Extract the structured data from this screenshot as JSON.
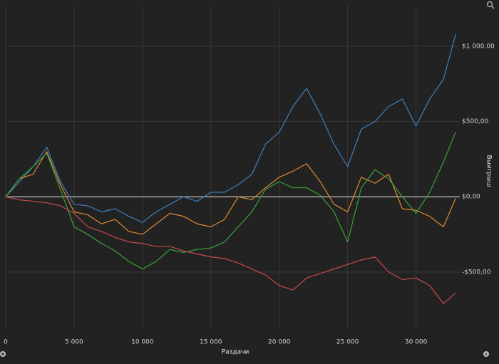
{
  "chart_data": {
    "type": "line",
    "x_label": "Раздачи",
    "y_label": "Выигрыш",
    "x": [
      0,
      1000,
      2000,
      3000,
      4000,
      5000,
      6000,
      7000,
      8000,
      9000,
      10000,
      11000,
      12000,
      13000,
      14000,
      15000,
      16000,
      17000,
      18000,
      19000,
      20000,
      21000,
      22000,
      23000,
      24000,
      25000,
      26000,
      27000,
      28000,
      29000,
      30000,
      31000,
      32000,
      32900
    ],
    "series": [
      {
        "color": "#3f7fc0",
        "values": [
          0,
          100,
          200,
          330,
          100,
          -50,
          -60,
          -100,
          -80,
          -130,
          -170,
          -100,
          -50,
          0,
          -30,
          30,
          30,
          80,
          150,
          350,
          430,
          600,
          720,
          550,
          350,
          200,
          450,
          500,
          600,
          650,
          470,
          650,
          780,
          1080
        ]
      },
      {
        "color": "#e08a2e",
        "values": [
          0,
          120,
          150,
          300,
          80,
          -100,
          -120,
          -180,
          -150,
          -230,
          -250,
          -180,
          -110,
          -130,
          -180,
          -200,
          -150,
          0,
          -20,
          60,
          130,
          170,
          220,
          100,
          -50,
          -100,
          130,
          90,
          150,
          -80,
          -90,
          -130,
          -200,
          -10
        ]
      },
      {
        "color": "#3aa33a",
        "values": [
          0,
          120,
          200,
          290,
          50,
          -200,
          -250,
          -310,
          -360,
          -430,
          -480,
          -430,
          -350,
          -370,
          -350,
          -340,
          -300,
          -200,
          -100,
          50,
          100,
          60,
          60,
          10,
          -100,
          -300,
          60,
          180,
          120,
          0,
          -110,
          30,
          230,
          430
        ]
      },
      {
        "color": "#c94b4b",
        "values": [
          0,
          -20,
          -30,
          -40,
          -60,
          -110,
          -200,
          -230,
          -270,
          -300,
          -310,
          -330,
          -330,
          -360,
          -380,
          -400,
          -410,
          -440,
          -480,
          -520,
          -590,
          -620,
          -540,
          -510,
          -480,
          -450,
          -420,
          -400,
          -500,
          -550,
          -540,
          -590,
          -710,
          -640
        ]
      }
    ],
    "xlim": [
      0,
      33200
    ],
    "ylim": [
      -870,
      1270
    ],
    "xticks": [
      0,
      {
        "value": 5000,
        "label": "5 000"
      },
      {
        "value": 10000,
        "label": "10 000"
      },
      {
        "value": 15000,
        "label": "15 000"
      },
      {
        "value": 20000,
        "label": "20 000"
      },
      {
        "value": 25000,
        "label": "25 000"
      },
      {
        "value": 30000,
        "label": "30 000"
      }
    ],
    "yticks": [
      {
        "value": -500,
        "label": "-$500,00"
      },
      {
        "value": 0,
        "label": "$0,00"
      },
      {
        "value": 500,
        "label": "$500,00"
      },
      {
        "value": 1000,
        "label": "$1 000,00"
      }
    ],
    "grid": true
  }
}
